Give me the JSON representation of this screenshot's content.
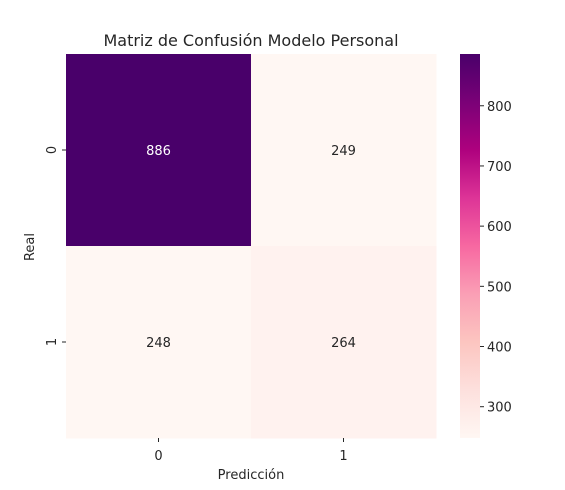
{
  "chart_data": {
    "type": "heatmap",
    "title": "Matriz de Confusión Modelo Personal",
    "xlabel": "Predicción",
    "ylabel": "Real",
    "x_categories": [
      "0",
      "1"
    ],
    "y_categories": [
      "0",
      "1"
    ],
    "values": [
      [
        886,
        249
      ],
      [
        248,
        264
      ]
    ],
    "colorbar": {
      "min": 248,
      "max": 886,
      "ticks": [
        300,
        400,
        500,
        600,
        700,
        800
      ],
      "colormap": "RdPu",
      "color_stops": [
        "#fff7f3",
        "#fde0dd",
        "#fcc5c0",
        "#fa9fb5",
        "#f768a1",
        "#dd3497",
        "#ae017e",
        "#7a0177",
        "#49006a"
      ]
    },
    "annotation_colors": {
      "on_dark": "#ffffff",
      "on_light": "#262626"
    }
  }
}
